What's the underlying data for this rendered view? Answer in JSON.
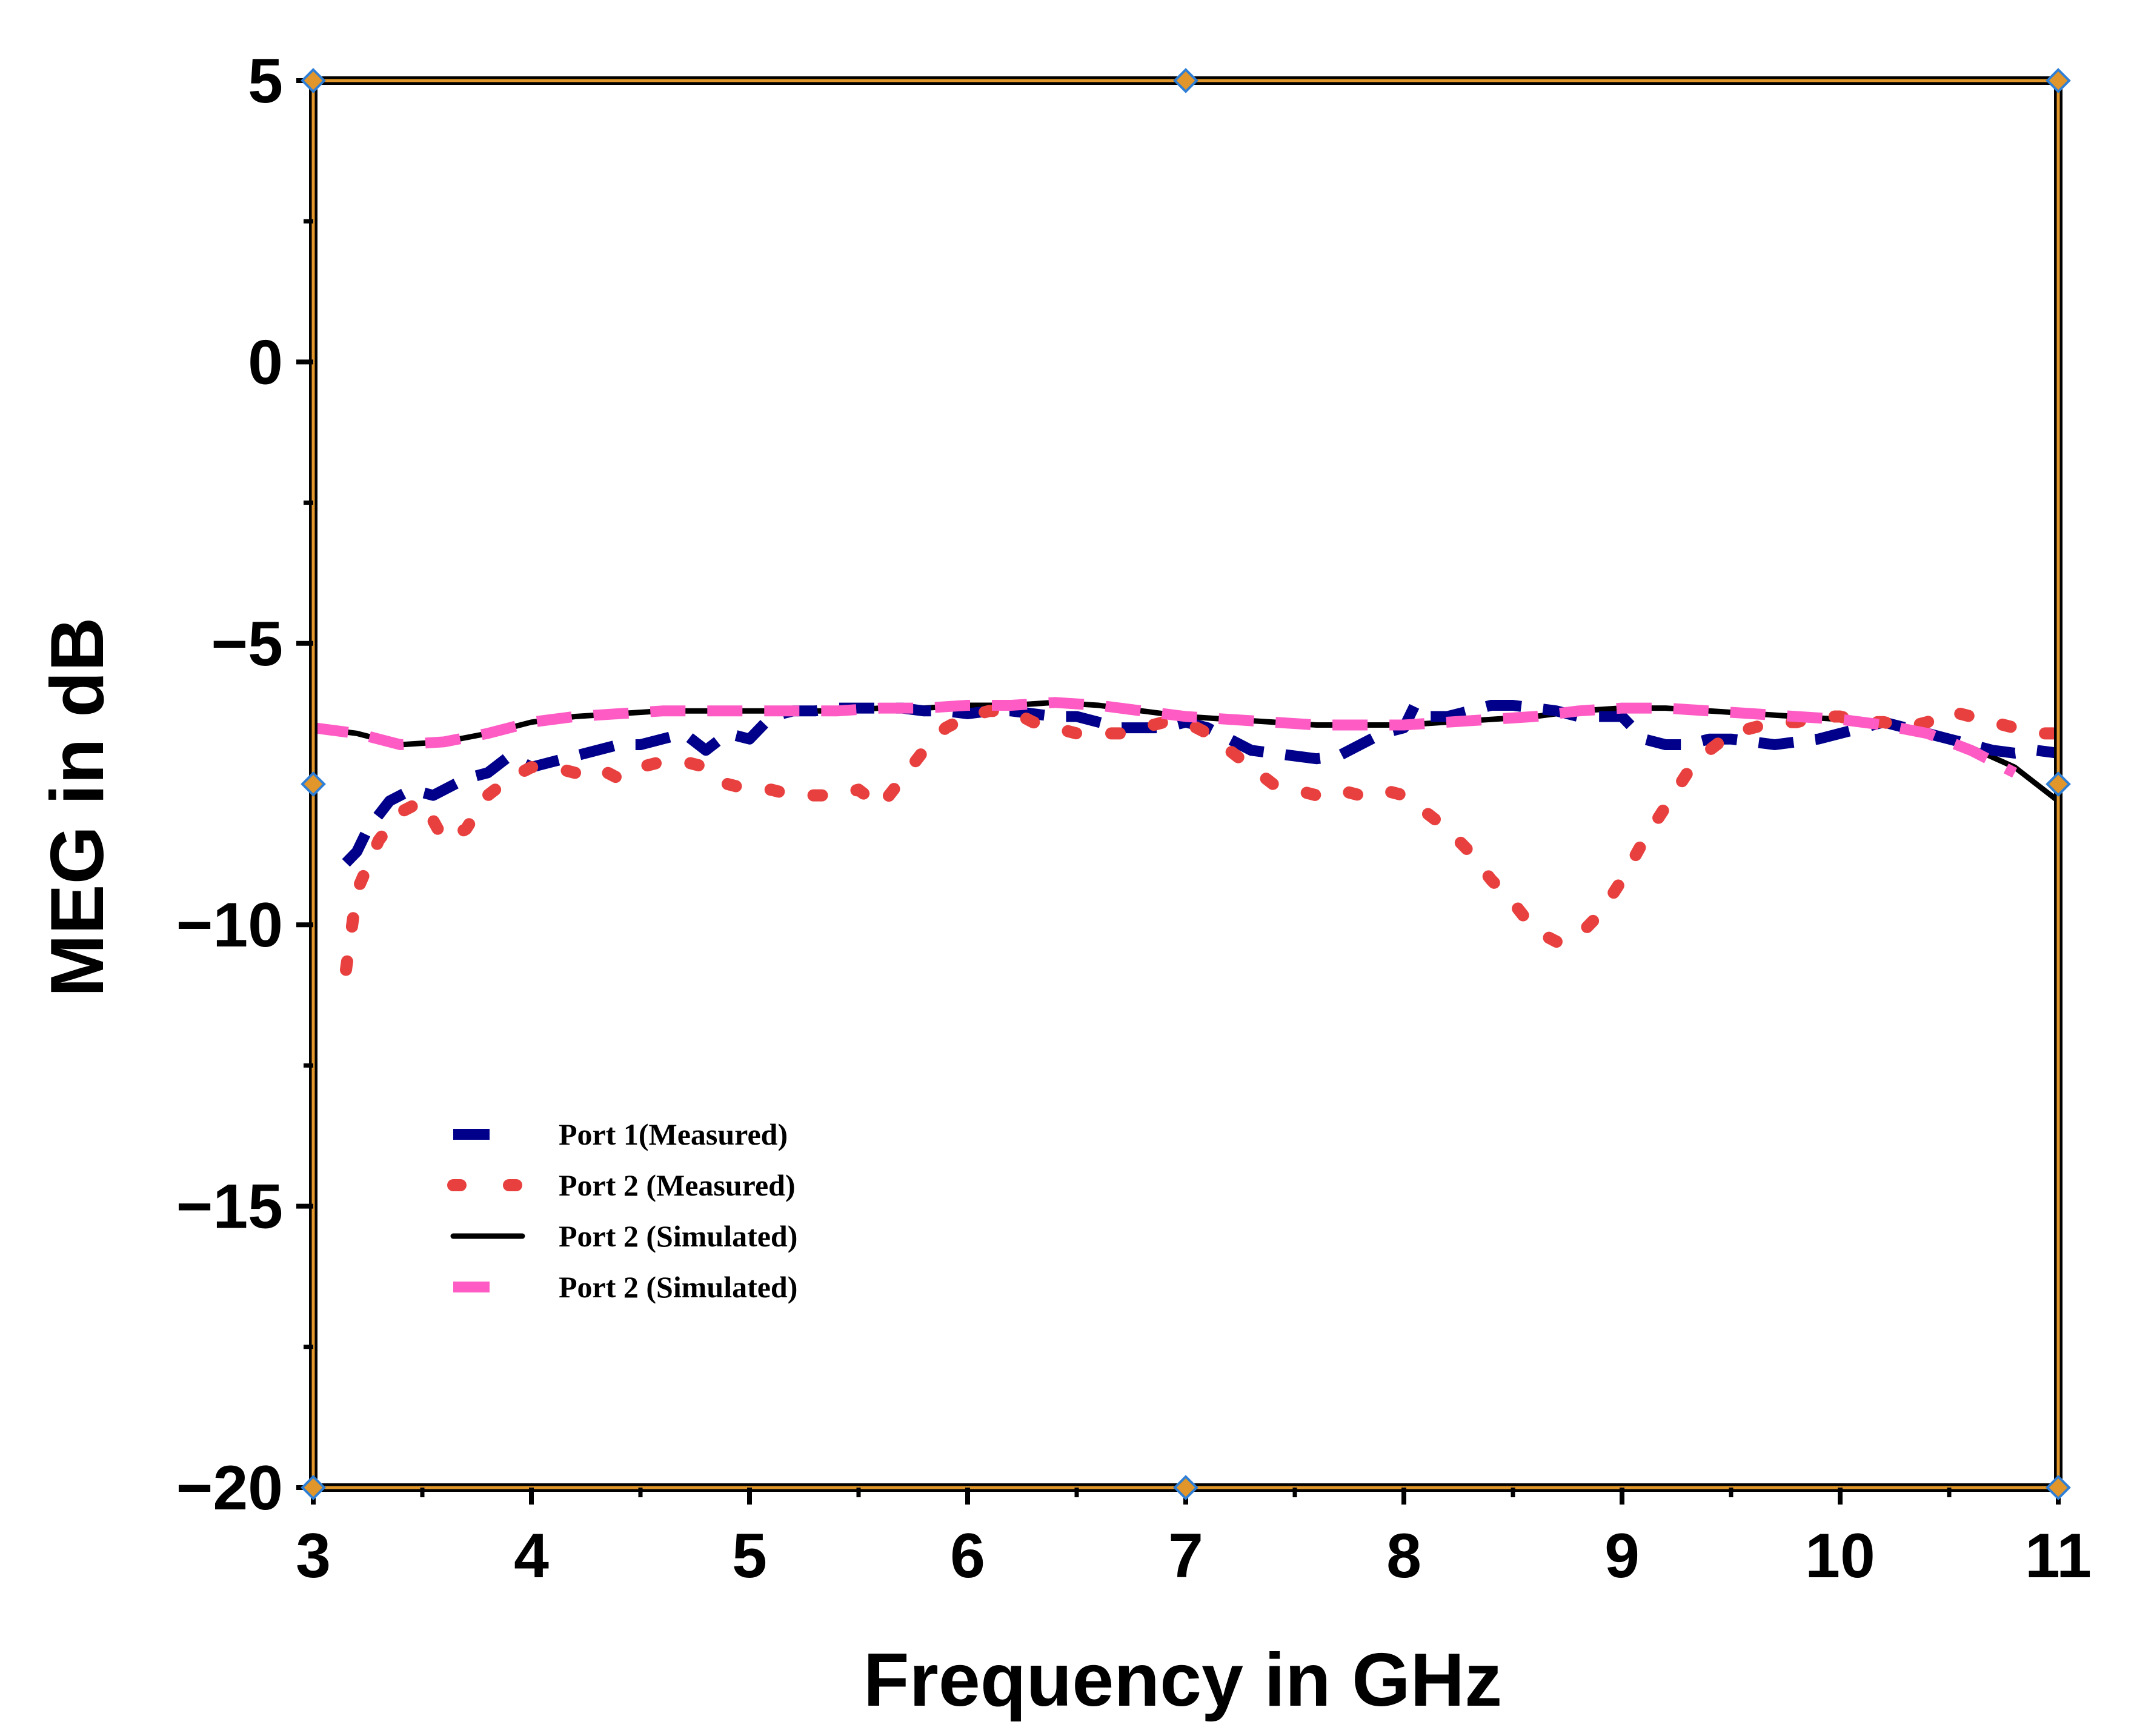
{
  "chart_data": {
    "type": "line",
    "title": "",
    "xlabel": "Frequency in GHz",
    "ylabel": "MEG in dB",
    "xlim": [
      3,
      11
    ],
    "ylim": [
      -20,
      5
    ],
    "xticks": [
      "3",
      "4",
      "5",
      "6",
      "7",
      "8",
      "9",
      "10",
      "11"
    ],
    "yticks": [
      "5",
      "0",
      "−5",
      "−10",
      "−15",
      "−20"
    ],
    "ytick_values": [
      5,
      0,
      -5,
      -10,
      -15,
      -20
    ],
    "grid": false,
    "legend_position": "lower-left",
    "series": [
      {
        "name": "Port 1(Measured)",
        "style": "dashed-thick",
        "color": "#00008b",
        "x": [
          3.15,
          3.2,
          3.25,
          3.35,
          3.45,
          3.55,
          3.7,
          3.8,
          3.9,
          4.0,
          4.1,
          4.2,
          4.3,
          4.4,
          4.5,
          4.6,
          4.7,
          4.8,
          4.9,
          5.0,
          5.1,
          5.2,
          5.3,
          5.4,
          5.5,
          5.6,
          5.7,
          5.8,
          5.9,
          6.0,
          6.1,
          6.2,
          6.3,
          6.4,
          6.5,
          6.6,
          6.7,
          6.8,
          6.9,
          7.0,
          7.1,
          7.2,
          7.3,
          7.4,
          7.5,
          7.6,
          7.7,
          7.8,
          7.9,
          8.0,
          8.05,
          8.1,
          8.2,
          8.3,
          8.4,
          8.5,
          8.6,
          8.7,
          8.8,
          8.9,
          9.0,
          9.1,
          9.2,
          9.3,
          9.4,
          9.5,
          9.6,
          9.7,
          9.8,
          9.9,
          10.0,
          10.1,
          10.2,
          10.3,
          10.4,
          10.5,
          10.6,
          10.7,
          10.8,
          10.9,
          11.0
        ],
        "y": [
          -8.9,
          -8.7,
          -8.3,
          -7.8,
          -7.6,
          -7.7,
          -7.4,
          -7.3,
          -7.0,
          -7.2,
          -7.1,
          -7.0,
          -6.9,
          -6.8,
          -6.8,
          -6.7,
          -6.6,
          -6.9,
          -6.6,
          -6.7,
          -6.3,
          -6.2,
          -6.2,
          -6.15,
          -6.15,
          -6.15,
          -6.15,
          -6.2,
          -6.2,
          -6.25,
          -6.2,
          -6.2,
          -6.25,
          -6.3,
          -6.3,
          -6.4,
          -6.5,
          -6.5,
          -6.5,
          -6.4,
          -6.5,
          -6.7,
          -6.9,
          -6.95,
          -7.0,
          -7.05,
          -7.0,
          -6.8,
          -6.6,
          -6.5,
          -6.1,
          -6.3,
          -6.3,
          -6.2,
          -6.1,
          -6.1,
          -6.15,
          -6.2,
          -6.3,
          -6.3,
          -6.3,
          -6.7,
          -6.8,
          -6.8,
          -6.7,
          -6.7,
          -6.75,
          -6.8,
          -6.75,
          -6.7,
          -6.6,
          -6.5,
          -6.4,
          -6.5,
          -6.6,
          -6.7,
          -6.8,
          -6.9,
          -6.95,
          -6.9,
          -6.95
        ]
      },
      {
        "name": "Port 2 (Measured)",
        "style": "dotted",
        "color": "#e8403f",
        "x": [
          3.15,
          3.2,
          3.3,
          3.4,
          3.5,
          3.6,
          3.7,
          3.8,
          3.9,
          4.0,
          4.1,
          4.2,
          4.3,
          4.4,
          4.5,
          4.6,
          4.7,
          4.8,
          4.9,
          5.0,
          5.1,
          5.2,
          5.3,
          5.4,
          5.5,
          5.6,
          5.7,
          5.8,
          5.9,
          6.0,
          6.1,
          6.2,
          6.3,
          6.4,
          6.5,
          6.6,
          6.7,
          6.8,
          6.9,
          7.0,
          7.1,
          7.2,
          7.3,
          7.4,
          7.5,
          7.6,
          7.7,
          7.8,
          7.9,
          8.0,
          8.1,
          8.2,
          8.3,
          8.4,
          8.5,
          8.6,
          8.7,
          8.8,
          8.9,
          9.0,
          9.1,
          9.2,
          9.3,
          9.4,
          9.5,
          9.6,
          9.7,
          9.8,
          9.9,
          10.0,
          10.1,
          10.2,
          10.3,
          10.4,
          10.5,
          10.6,
          10.7,
          10.8,
          10.9,
          11.0
        ],
        "y": [
          -10.8,
          -9.4,
          -8.5,
          -8.0,
          -7.8,
          -8.5,
          -8.3,
          -7.7,
          -7.4,
          -7.2,
          -7.2,
          -7.3,
          -7.2,
          -7.4,
          -7.2,
          -7.1,
          -7.1,
          -7.2,
          -7.5,
          -7.6,
          -7.6,
          -7.7,
          -7.7,
          -7.7,
          -7.6,
          -7.9,
          -7.4,
          -6.9,
          -6.5,
          -6.3,
          -6.2,
          -6.2,
          -6.4,
          -6.5,
          -6.6,
          -6.6,
          -6.6,
          -6.5,
          -6.4,
          -6.4,
          -6.6,
          -6.9,
          -7.2,
          -7.5,
          -7.6,
          -7.7,
          -7.6,
          -7.7,
          -7.6,
          -7.7,
          -8.0,
          -8.3,
          -8.7,
          -9.2,
          -9.6,
          -10.1,
          -10.3,
          -10.2,
          -9.8,
          -9.2,
          -8.5,
          -7.9,
          -7.3,
          -6.9,
          -6.6,
          -6.5,
          -6.4,
          -6.4,
          -6.3,
          -6.3,
          -6.4,
          -6.4,
          -6.5,
          -6.4,
          -6.2,
          -6.3,
          -6.4,
          -6.5,
          -6.6,
          -6.6
        ]
      },
      {
        "name": "Port 2 (Simulated)",
        "style": "solid",
        "color": "#000000",
        "x": [
          3.0,
          3.2,
          3.4,
          3.6,
          3.8,
          4.0,
          4.2,
          4.4,
          4.6,
          4.8,
          5.0,
          5.2,
          5.4,
          5.6,
          5.8,
          6.0,
          6.2,
          6.4,
          6.6,
          6.8,
          7.0,
          7.2,
          7.4,
          7.6,
          7.8,
          8.0,
          8.2,
          8.4,
          8.6,
          8.8,
          9.0,
          9.2,
          9.4,
          9.6,
          9.8,
          10.0,
          10.2,
          10.4,
          10.6,
          10.8,
          11.0
        ],
        "y": [
          -6.5,
          -6.6,
          -6.8,
          -6.75,
          -6.6,
          -6.4,
          -6.3,
          -6.25,
          -6.2,
          -6.2,
          -6.2,
          -6.2,
          -6.2,
          -6.15,
          -6.15,
          -6.1,
          -6.1,
          -6.05,
          -6.1,
          -6.2,
          -6.3,
          -6.35,
          -6.4,
          -6.45,
          -6.45,
          -6.45,
          -6.4,
          -6.35,
          -6.3,
          -6.2,
          -6.15,
          -6.15,
          -6.2,
          -6.25,
          -6.3,
          -6.35,
          -6.45,
          -6.6,
          -6.85,
          -7.2,
          -7.8
        ]
      },
      {
        "name": "Port 2 (Simulated)",
        "style": "dashed-thick",
        "color": "#ff5bc4",
        "x": [
          3.0,
          3.2,
          3.4,
          3.6,
          3.8,
          4.0,
          4.2,
          4.4,
          4.6,
          4.8,
          5.0,
          5.2,
          5.4,
          5.6,
          5.8,
          6.0,
          6.2,
          6.4,
          6.6,
          6.8,
          7.0,
          7.2,
          7.4,
          7.6,
          7.8,
          8.0,
          8.2,
          8.4,
          8.6,
          8.8,
          9.0,
          9.2,
          9.4,
          9.6,
          9.8,
          10.0,
          10.2,
          10.4,
          10.6,
          10.8
        ],
        "y": [
          -6.5,
          -6.6,
          -6.8,
          -6.75,
          -6.6,
          -6.4,
          -6.3,
          -6.25,
          -6.2,
          -6.2,
          -6.2,
          -6.2,
          -6.2,
          -6.15,
          -6.15,
          -6.1,
          -6.1,
          -6.05,
          -6.1,
          -6.2,
          -6.3,
          -6.35,
          -6.4,
          -6.45,
          -6.45,
          -6.45,
          -6.4,
          -6.35,
          -6.3,
          -6.2,
          -6.15,
          -6.15,
          -6.2,
          -6.25,
          -6.3,
          -6.35,
          -6.45,
          -6.6,
          -6.9,
          -7.3
        ]
      }
    ]
  }
}
